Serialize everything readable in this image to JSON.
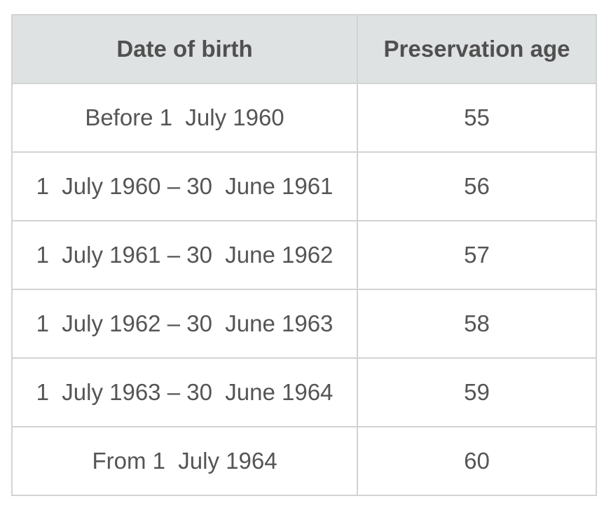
{
  "table": {
    "headers": [
      "Date of birth",
      "Preservation age"
    ],
    "rows": [
      {
        "date_of_birth": "Before 1  July 1960",
        "preservation_age": "55"
      },
      {
        "date_of_birth": "1  July 1960 – 30  June 1961",
        "preservation_age": "56"
      },
      {
        "date_of_birth": "1  July 1961 – 30  June 1962",
        "preservation_age": "57"
      },
      {
        "date_of_birth": "1  July 1962 – 30  June 1963",
        "preservation_age": "58"
      },
      {
        "date_of_birth": "1  July 1963 – 30  June 1964",
        "preservation_age": "59"
      },
      {
        "date_of_birth": "From 1  July 1964",
        "preservation_age": "60"
      }
    ]
  },
  "colors": {
    "header_background": "#dfe2e3",
    "border": "#d3d3d3",
    "text": "#555555"
  }
}
